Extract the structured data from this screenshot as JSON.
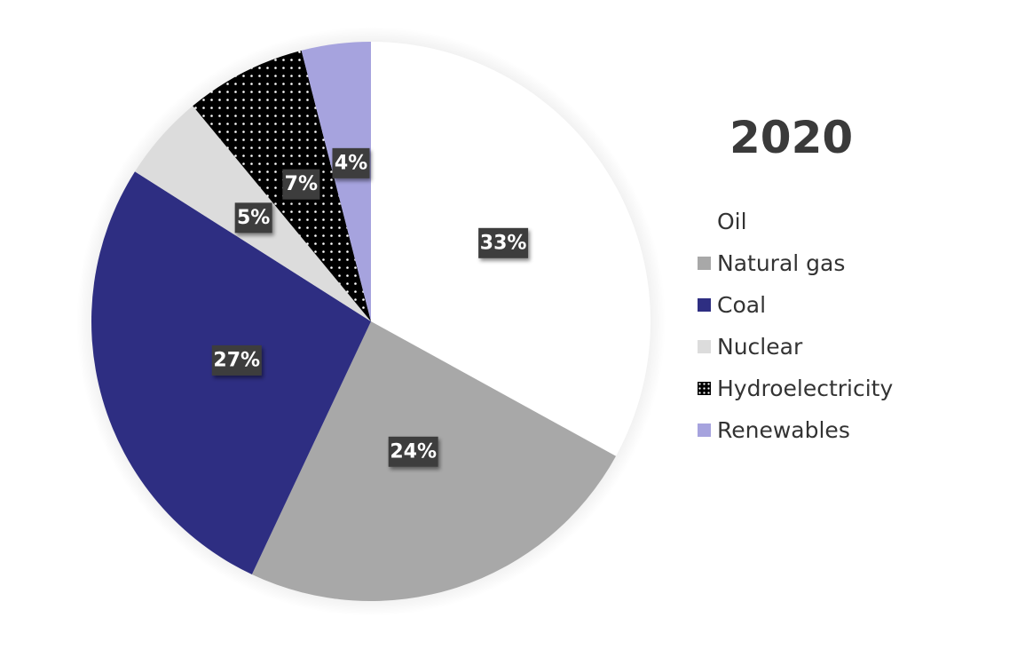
{
  "chart_data": {
    "type": "pie",
    "title": "2020",
    "legend_position": "right",
    "slices": [
      {
        "name": "Oil",
        "value": 33,
        "label": "33%",
        "color": "#ffffff"
      },
      {
        "name": "Natural gas",
        "value": 24,
        "label": "24%",
        "color": "#a8a8a8"
      },
      {
        "name": "Coal",
        "value": 27,
        "label": "27%",
        "color": "#2e2e82"
      },
      {
        "name": "Nuclear",
        "value": 5,
        "label": "5%",
        "color": "#dcdcdc"
      },
      {
        "name": "Hydroelectricity",
        "value": 7,
        "label": "7%",
        "color": "#000000",
        "pattern": "white-dots"
      },
      {
        "name": "Renewables",
        "value": 4,
        "label": "4%",
        "color": "#a6a3de"
      }
    ]
  }
}
